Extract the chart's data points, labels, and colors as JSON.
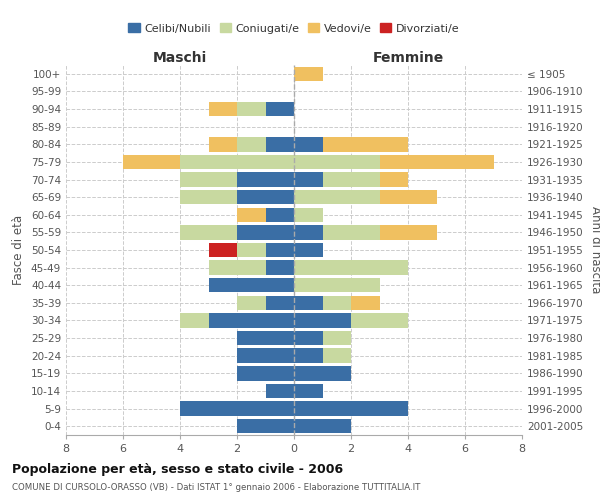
{
  "age_groups": [
    "0-4",
    "5-9",
    "10-14",
    "15-19",
    "20-24",
    "25-29",
    "30-34",
    "35-39",
    "40-44",
    "45-49",
    "50-54",
    "55-59",
    "60-64",
    "65-69",
    "70-74",
    "75-79",
    "80-84",
    "85-89",
    "90-94",
    "95-99",
    "100+"
  ],
  "birth_years": [
    "2001-2005",
    "1996-2000",
    "1991-1995",
    "1986-1990",
    "1981-1985",
    "1976-1980",
    "1971-1975",
    "1966-1970",
    "1961-1965",
    "1956-1960",
    "1951-1955",
    "1946-1950",
    "1941-1945",
    "1936-1940",
    "1931-1935",
    "1926-1930",
    "1921-1925",
    "1916-1920",
    "1911-1915",
    "1906-1910",
    "≤ 1905"
  ],
  "maschi": {
    "celibi": [
      2,
      4,
      1,
      2,
      2,
      2,
      3,
      1,
      3,
      1,
      1,
      2,
      1,
      2,
      2,
      0,
      1,
      0,
      1,
      0,
      0
    ],
    "coniugati": [
      0,
      0,
      0,
      0,
      0,
      0,
      1,
      1,
      0,
      2,
      1,
      2,
      0,
      2,
      2,
      4,
      1,
      0,
      1,
      0,
      0
    ],
    "vedovi": [
      0,
      0,
      0,
      0,
      0,
      0,
      0,
      0,
      0,
      0,
      0,
      0,
      1,
      0,
      0,
      2,
      1,
      0,
      1,
      0,
      0
    ],
    "divorziati": [
      0,
      0,
      0,
      0,
      0,
      0,
      0,
      0,
      0,
      0,
      1,
      0,
      0,
      0,
      0,
      0,
      0,
      0,
      0,
      0,
      0
    ]
  },
  "femmine": {
    "nubili": [
      2,
      4,
      1,
      2,
      1,
      1,
      2,
      1,
      0,
      0,
      1,
      1,
      0,
      0,
      1,
      0,
      1,
      0,
      0,
      0,
      0
    ],
    "coniugate": [
      0,
      0,
      0,
      0,
      1,
      1,
      2,
      1,
      3,
      4,
      0,
      2,
      1,
      3,
      2,
      3,
      0,
      0,
      0,
      0,
      0
    ],
    "vedove": [
      0,
      0,
      0,
      0,
      0,
      0,
      0,
      1,
      0,
      0,
      0,
      2,
      0,
      2,
      1,
      4,
      3,
      0,
      0,
      0,
      1
    ],
    "divorziate": [
      0,
      0,
      0,
      0,
      0,
      0,
      0,
      0,
      0,
      0,
      0,
      0,
      0,
      0,
      0,
      0,
      0,
      0,
      0,
      0,
      0
    ]
  },
  "colors": {
    "celibi_nubili": "#3a6ea5",
    "coniugati": "#c8d9a0",
    "vedovi": "#f0c060",
    "divorziati": "#cc2222"
  },
  "xlim": 8,
  "title": "Popolazione per età, sesso e stato civile - 2006",
  "subtitle": "COMUNE DI CURSOLO-ORASSO (VB) - Dati ISTAT 1° gennaio 2006 - Elaborazione TUTTITALIA.IT",
  "ylabel_left": "Fasce di età",
  "ylabel_right": "Anni di nascita",
  "xlabel_maschi": "Maschi",
  "xlabel_femmine": "Femmine",
  "legend_labels": [
    "Celibi/Nubili",
    "Coniugati/e",
    "Vedovi/e",
    "Divorziati/e"
  ],
  "background_color": "#ffffff",
  "grid_color": "#cccccc"
}
